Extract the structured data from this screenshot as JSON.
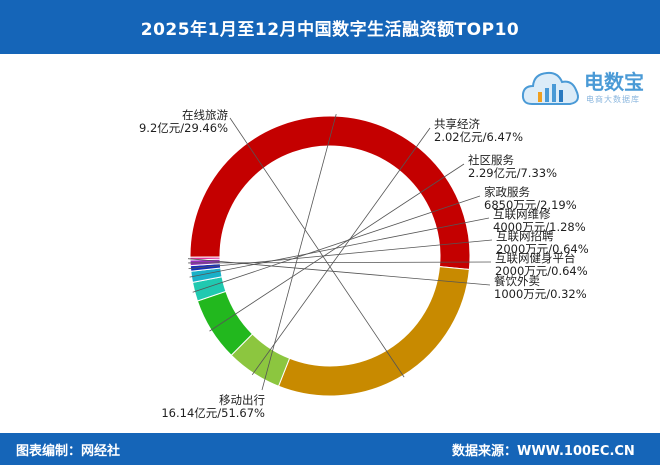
{
  "header": {
    "title": "2025年1月至12月中国数字生活融资额TOP10"
  },
  "footer": {
    "left": "图表编制：网经社",
    "right": "数据来源：WWW.100EC.CN"
  },
  "logo": {
    "name": "电数宝",
    "sub": "电商大数据库"
  },
  "colors": {
    "bar": "#1565b8"
  },
  "chart_data": {
    "type": "pie",
    "style": "donut",
    "slices": [
      {
        "name": "移动出行",
        "value": 51.67,
        "label": "16.14亿元/51.67%",
        "color": "#c40000"
      },
      {
        "name": "在线旅游",
        "value": 29.46,
        "label": "9.2亿元/29.46%",
        "color": "#c88a00"
      },
      {
        "name": "共享经济",
        "value": 6.47,
        "label": "2.02亿元/6.47%",
        "color": "#8cc63f"
      },
      {
        "name": "社区服务",
        "value": 7.33,
        "label": "2.29亿元/7.33%",
        "color": "#22b81e"
      },
      {
        "name": "家政服务",
        "value": 2.19,
        "label": "6850万元/2.19%",
        "color": "#20c9b0"
      },
      {
        "name": "互联网维修",
        "value": 1.28,
        "label": "4000万元/1.28%",
        "color": "#1ab0c8"
      },
      {
        "name": "互联网招聘",
        "value": 0.64,
        "label": "2000万元/0.64%",
        "color": "#1530b8"
      },
      {
        "name": "互联网健身平台",
        "value": 0.64,
        "label": "2000万元/0.64%",
        "color": "#9830c0"
      },
      {
        "name": "餐饮外卖",
        "value": 0.32,
        "label": "1000万元/0.32%",
        "color": "#e0309a"
      }
    ]
  }
}
